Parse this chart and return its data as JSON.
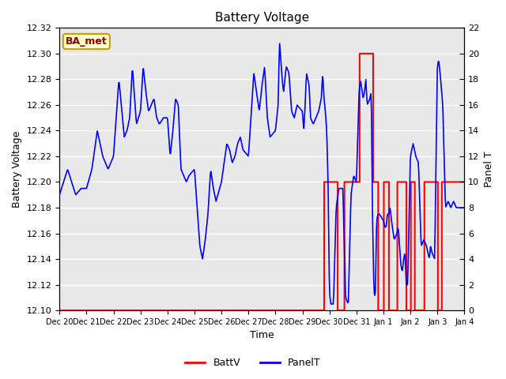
{
  "title": "Battery Voltage",
  "xlabel": "Time",
  "ylabel_left": "Battery Voltage",
  "ylabel_right": "Panel T",
  "ylim_left": [
    12.1,
    12.32
  ],
  "ylim_right": [
    0,
    22
  ],
  "yticks_left": [
    12.1,
    12.12,
    12.14,
    12.16,
    12.18,
    12.2,
    12.22,
    12.24,
    12.26,
    12.28,
    12.3,
    12.32
  ],
  "yticks_right": [
    0,
    2,
    4,
    6,
    8,
    10,
    12,
    14,
    16,
    18,
    20,
    22
  ],
  "xtick_labels": [
    "Dec 20",
    "Dec 21",
    "Dec 22",
    "Dec 23",
    "Dec 24",
    "Dec 25",
    "Dec 26",
    "Dec 27",
    "Dec 28",
    "Dec 29",
    "Dec 30",
    "Dec 31",
    "Jan 1",
    "Jan 2",
    "Jan 3",
    "Jan 4"
  ],
  "bg_color": "#e8e8e8",
  "grid_color": "#ffffff",
  "legend_label_red": "BattV",
  "legend_label_blue": "PanelT",
  "annotation_text": "BA_met",
  "annotation_bg": "#ffffcc",
  "annotation_border": "#c8a000",
  "n_days": 15
}
